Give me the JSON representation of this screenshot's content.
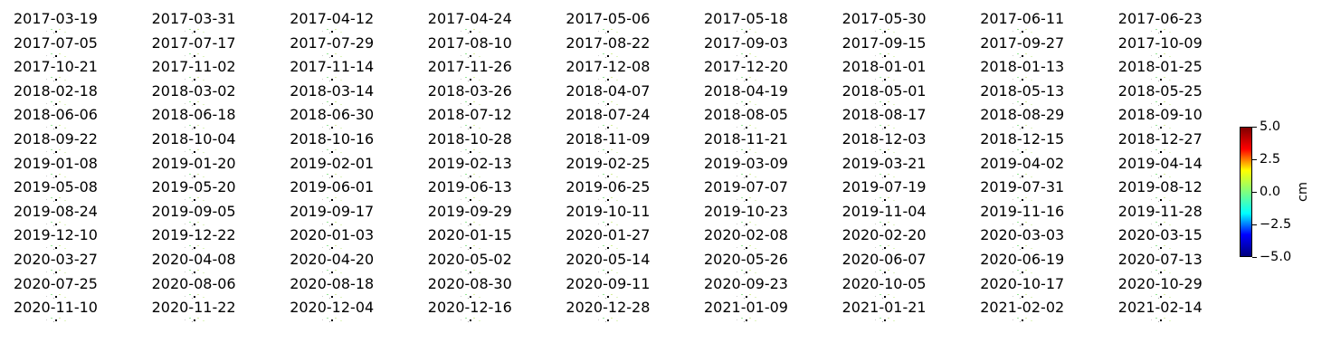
{
  "chart_data": {
    "type": "heatmap",
    "panel_titles": [
      "2017-03-19",
      "2017-03-31",
      "2017-04-12",
      "2017-04-24",
      "2017-05-06",
      "2017-05-18",
      "2017-05-30",
      "2017-06-11",
      "2017-06-23",
      "2017-07-05",
      "2017-07-17",
      "2017-07-29",
      "2017-08-10",
      "2017-08-22",
      "2017-09-03",
      "2017-09-15",
      "2017-09-27",
      "2017-10-09",
      "2017-10-21",
      "2017-11-02",
      "2017-11-14",
      "2017-11-26",
      "2017-12-08",
      "2017-12-20",
      "2018-01-01",
      "2018-01-13",
      "2018-01-25",
      "2018-02-18",
      "2018-03-02",
      "2018-03-14",
      "2018-03-26",
      "2018-04-07",
      "2018-04-19",
      "2018-05-01",
      "2018-05-13",
      "2018-05-25",
      "2018-06-06",
      "2018-06-18",
      "2018-06-30",
      "2018-07-12",
      "2018-07-24",
      "2018-08-05",
      "2018-08-17",
      "2018-08-29",
      "2018-09-10",
      "2018-09-22",
      "2018-10-04",
      "2018-10-16",
      "2018-10-28",
      "2018-11-09",
      "2018-11-21",
      "2018-12-03",
      "2018-12-15",
      "2018-12-27",
      "2019-01-08",
      "2019-01-20",
      "2019-02-01",
      "2019-02-13",
      "2019-02-25",
      "2019-03-09",
      "2019-03-21",
      "2019-04-02",
      "2019-04-14",
      "2019-05-08",
      "2019-05-20",
      "2019-06-01",
      "2019-06-13",
      "2019-06-25",
      "2019-07-07",
      "2019-07-19",
      "2019-07-31",
      "2019-08-12",
      "2019-08-24",
      "2019-09-05",
      "2019-09-17",
      "2019-09-29",
      "2019-10-11",
      "2019-10-23",
      "2019-11-04",
      "2019-11-16",
      "2019-11-28",
      "2019-12-10",
      "2019-12-22",
      "2020-01-03",
      "2020-01-15",
      "2020-01-27",
      "2020-02-08",
      "2020-02-20",
      "2020-03-03",
      "2020-03-15",
      "2020-03-27",
      "2020-04-08",
      "2020-04-20",
      "2020-05-02",
      "2020-05-14",
      "2020-05-26",
      "2020-06-07",
      "2020-06-19",
      "2020-07-13",
      "2020-07-25",
      "2020-08-06",
      "2020-08-18",
      "2020-08-30",
      "2020-09-11",
      "2020-09-23",
      "2020-10-05",
      "2020-10-17",
      "2020-10-29",
      "2020-11-10",
      "2020-11-22",
      "2020-12-04",
      "2020-12-16",
      "2020-12-28",
      "2021-01-09",
      "2021-01-21",
      "2021-02-02",
      "2021-02-14"
    ],
    "columns": 9,
    "colorbar": {
      "colormap": "jet",
      "colors": [
        "#00007f",
        "#0000ff",
        "#00ffff",
        "#7fff7f",
        "#ffff00",
        "#ff0000",
        "#7f0000"
      ],
      "vmin": -5.0,
      "vmax": 5.0,
      "ticks": [
        "5.0",
        "2.5",
        "0.0",
        "−2.5",
        "−5.0"
      ],
      "label": "cm"
    }
  }
}
